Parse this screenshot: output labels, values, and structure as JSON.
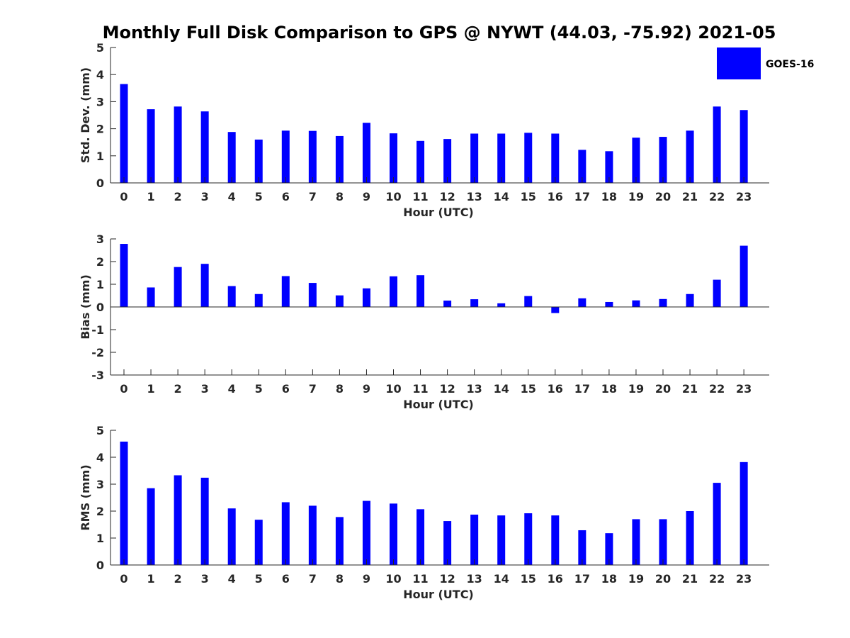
{
  "title": "Monthly Full Disk Comparison to GPS @ NYWT (44.03, -75.92) 2021-05",
  "colors": {
    "bar": "#0000ff",
    "axis": "#262626",
    "background": "#ffffff"
  },
  "chart_data": [
    {
      "type": "bar",
      "id": "stddev",
      "categories": [
        "0",
        "1",
        "2",
        "3",
        "4",
        "5",
        "6",
        "7",
        "8",
        "9",
        "10",
        "11",
        "12",
        "13",
        "14",
        "15",
        "16",
        "17",
        "18",
        "19",
        "20",
        "21",
        "22",
        "23"
      ],
      "series": [
        {
          "name": "GOES-16",
          "values": [
            3.65,
            2.72,
            2.82,
            2.64,
            1.88,
            1.6,
            1.93,
            1.92,
            1.73,
            2.22,
            1.83,
            1.55,
            1.62,
            1.82,
            1.82,
            1.85,
            1.82,
            1.22,
            1.17,
            1.67,
            1.7,
            1.93,
            2.82,
            2.69
          ]
        }
      ],
      "xlabel": "Hour (UTC)",
      "ylabel": "Std. Dev. (mm)",
      "ylim": [
        0,
        5
      ],
      "yticks": [
        "0",
        "1",
        "2",
        "3",
        "4",
        "5"
      ],
      "legend": {
        "position": "top-right",
        "entries": [
          "GOES-16"
        ]
      }
    },
    {
      "type": "bar",
      "id": "bias",
      "categories": [
        "0",
        "1",
        "2",
        "3",
        "4",
        "5",
        "6",
        "7",
        "8",
        "9",
        "10",
        "11",
        "12",
        "13",
        "14",
        "15",
        "16",
        "17",
        "18",
        "19",
        "20",
        "21",
        "22",
        "23"
      ],
      "series": [
        {
          "name": "GOES-16",
          "values": [
            2.78,
            0.86,
            1.76,
            1.9,
            0.92,
            0.57,
            1.36,
            1.06,
            0.51,
            0.82,
            1.35,
            1.4,
            0.28,
            0.34,
            0.16,
            0.48,
            -0.27,
            0.38,
            0.22,
            0.29,
            0.35,
            0.57,
            1.2,
            2.7
          ]
        }
      ],
      "xlabel": "Hour (UTC)",
      "ylabel": "Bias (mm)",
      "ylim": [
        -3,
        3
      ],
      "yticks": [
        "-3",
        "-2",
        "-1",
        "0",
        "1",
        "2",
        "3"
      ]
    },
    {
      "type": "bar",
      "id": "rms",
      "categories": [
        "0",
        "1",
        "2",
        "3",
        "4",
        "5",
        "6",
        "7",
        "8",
        "9",
        "10",
        "11",
        "12",
        "13",
        "14",
        "15",
        "16",
        "17",
        "18",
        "19",
        "20",
        "21",
        "22",
        "23"
      ],
      "series": [
        {
          "name": "GOES-16",
          "values": [
            4.58,
            2.85,
            3.33,
            3.24,
            2.1,
            1.68,
            2.33,
            2.2,
            1.78,
            2.38,
            2.28,
            2.07,
            1.63,
            1.87,
            1.84,
            1.92,
            1.84,
            1.29,
            1.18,
            1.7,
            1.7,
            2.0,
            3.05,
            3.82
          ]
        }
      ],
      "xlabel": "Hour (UTC)",
      "ylabel": "RMS (mm)",
      "ylim": [
        0,
        5
      ],
      "yticks": [
        "0",
        "1",
        "2",
        "3",
        "4",
        "5"
      ]
    }
  ]
}
